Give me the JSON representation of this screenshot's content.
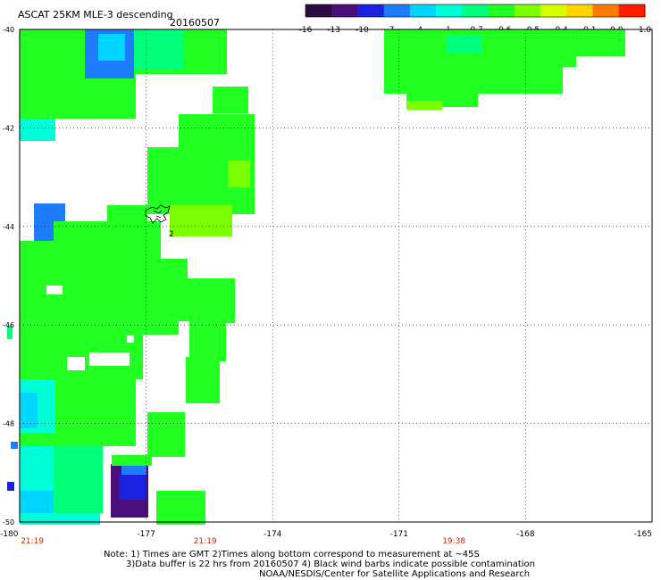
{
  "title": "ASCAT 25KM MLE-3 descending",
  "date": "20160507",
  "colorbar": {
    "labels": [
      "-16",
      "-13",
      "-10",
      "-7",
      "-4",
      "-1",
      "-0.7",
      "-0.6",
      "-0.5",
      "-0.4",
      "-0.1",
      "0.0",
      "1.0"
    ],
    "colors": [
      "#2b0b3f",
      "#4a0f7a",
      "#1a22e0",
      "#1e7cff",
      "#00d6ff",
      "#00ffd8",
      "#00ff7a",
      "#22ff22",
      "#7cff00",
      "#d8ff00",
      "#ffd400",
      "#ff7a00",
      "#ff1a00"
    ]
  },
  "map": {
    "lon_range": [
      -180,
      -165
    ],
    "lat_range": [
      -50,
      -40
    ],
    "lon_ticks": [
      "-180",
      "-177",
      "-174",
      "-171",
      "-168",
      "-165"
    ],
    "lat_ticks": [
      "-40",
      "-42",
      "-44",
      "-46",
      "-48",
      "-50"
    ],
    "grid": "dotted",
    "time_labels": [
      {
        "text": "21:19",
        "lon": -179.7
      },
      {
        "text": "21:19",
        "lon": -175.6
      },
      {
        "text": "19:38",
        "lon": -169.7
      }
    ],
    "time_color": "#cc2200",
    "land_marker_label": "2"
  },
  "notes": [
    "Note: 1) Times are GMT 2)Times along bottom correspond to measurement at ~45S",
    "3)Data buffer is 22 hrs from 20160507 4) Black wind barbs indicate possible contamination",
    "NOAA/NESDIS/Center for Satellite Applications and Research"
  ]
}
